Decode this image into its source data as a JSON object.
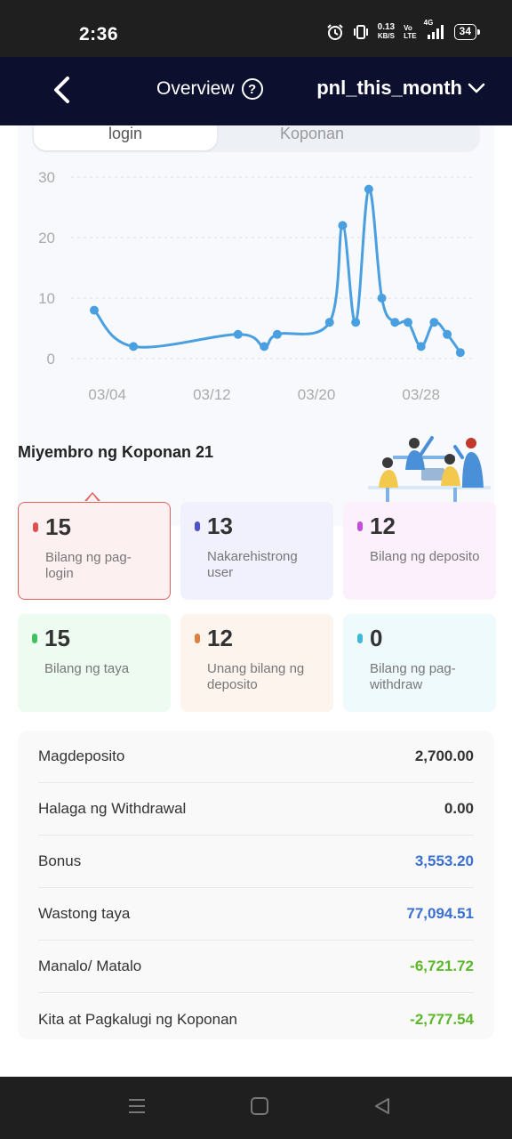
{
  "status_bar": {
    "time": "2:36",
    "net_speed_value": "0.13",
    "net_speed_unit": "KB/S",
    "volte_top": "Vo",
    "volte_bottom": "LTE",
    "network": "4G",
    "battery": "34",
    "icons": [
      "alarm-icon",
      "vibrate-icon",
      "signal-icon",
      "battery-icon"
    ]
  },
  "header": {
    "title": "Overview",
    "period": "pnl_this_month",
    "icons": [
      "back-arrow-icon",
      "help-icon",
      "chevron-down-icon"
    ]
  },
  "tabs": [
    {
      "label": "login",
      "active": true
    },
    {
      "label": "Koponan",
      "active": false
    }
  ],
  "chart_data": {
    "type": "line",
    "x": [
      "03/03",
      "03/06",
      "03/14",
      "03/16",
      "03/17",
      "03/21",
      "03/22",
      "03/23",
      "03/24",
      "03/25",
      "03/26",
      "03/27",
      "03/28",
      "03/29",
      "03/30",
      "03/31"
    ],
    "values": [
      8,
      2,
      4,
      2,
      4,
      6,
      22,
      6,
      28,
      10,
      6,
      6,
      2,
      6,
      4,
      1
    ],
    "x_tick_labels": [
      "03/04",
      "03/12",
      "03/20",
      "03/28"
    ],
    "y_ticks": [
      "0",
      "10",
      "20",
      "30"
    ],
    "ylim": [
      0,
      30
    ],
    "grid": true,
    "color": "#4a9fe0"
  },
  "team": {
    "title": "Miyembro ng Koponan 21"
  },
  "stats": [
    {
      "value": "15",
      "label": "Bilang ng pag-login",
      "dot": "#e05050",
      "bg": "#fdf0f0"
    },
    {
      "value": "13",
      "label": "Nakarehistrong user",
      "dot": "#5050c8",
      "bg": "#f1f0fd"
    },
    {
      "value": "12",
      "label": "Bilang ng deposito",
      "dot": "#c050d8",
      "bg": "#fcf0fd"
    },
    {
      "value": "15",
      "label": "Bilang ng taya",
      "dot": "#40c060",
      "bg": "#eefbf1"
    },
    {
      "value": "12",
      "label": "Unang bilang ng deposito",
      "dot": "#e08040",
      "bg": "#fdf4ee"
    },
    {
      "value": "0",
      "label": "Bilang ng pag-withdraw",
      "dot": "#40b8d8",
      "bg": "#eefafc"
    }
  ],
  "summary": [
    {
      "label": "Magdeposito",
      "value": "2,700.00",
      "color": "#333333"
    },
    {
      "label": "Halaga ng Withdrawal",
      "value": "0.00",
      "color": "#333333"
    },
    {
      "label": "Bonus",
      "value": "3,553.20",
      "color": "#3b6fd0"
    },
    {
      "label": "Wastong taya",
      "value": "77,094.51",
      "color": "#3b6fd0"
    },
    {
      "label": "Manalo/ Matalo",
      "value": "-6,721.72",
      "color": "#5cb82a"
    },
    {
      "label": "Kita at Pagkalugi ng Koponan",
      "value": "-2,777.54",
      "color": "#5cb82a"
    }
  ],
  "system_nav": {
    "icons": [
      "menu-icon",
      "home-icon",
      "back-icon"
    ]
  }
}
